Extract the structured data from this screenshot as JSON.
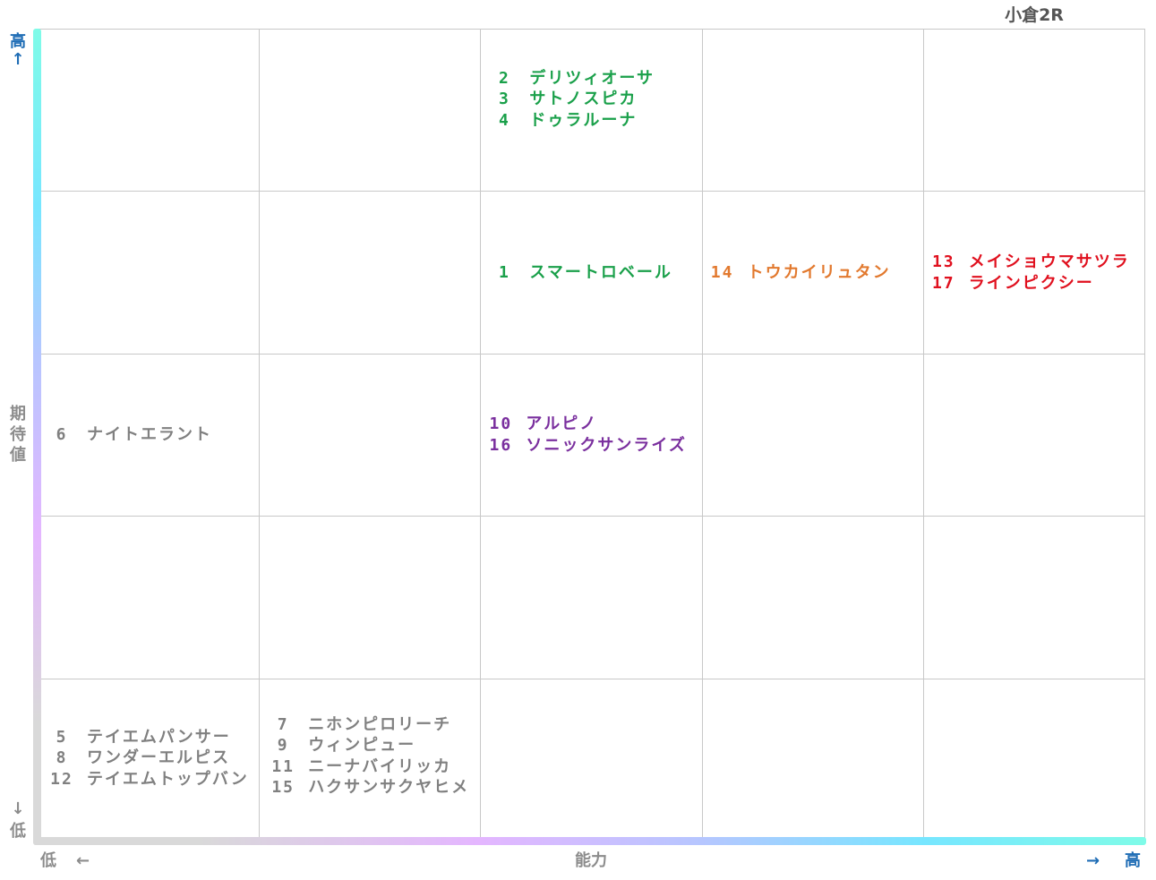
{
  "chart_data": {
    "type": "table",
    "race_title": "小倉2R",
    "x_axis": {
      "label": "能力",
      "low": "低",
      "high": "高",
      "low_arrow": "←",
      "high_arrow": "→"
    },
    "y_axis": {
      "label": "期待値",
      "high": "高",
      "low": "低",
      "up_arrow": "↑",
      "down_arrow": "↓"
    },
    "cells": {
      "r0c2": {
        "color": "#1aa04a",
        "entries": [
          {
            "num": "2",
            "name": "デリツィオーサ"
          },
          {
            "num": "3",
            "name": "サトノスピカ"
          },
          {
            "num": "4",
            "name": "ドゥラルーナ"
          }
        ]
      },
      "r1c2": {
        "color": "#1aa04a",
        "entries": [
          {
            "num": "1",
            "name": "スマートロベール"
          }
        ]
      },
      "r1c3": {
        "color": "#e2792e",
        "entries": [
          {
            "num": "14",
            "name": "トウカイリュタン"
          }
        ]
      },
      "r1c4": {
        "color": "#e0101e",
        "entries": [
          {
            "num": "13",
            "name": "メイショウマサツラ"
          },
          {
            "num": "17",
            "name": "ラインピクシー"
          }
        ]
      },
      "r2c0": {
        "color": "#808080",
        "entries": [
          {
            "num": "6",
            "name": "ナイトエラント"
          }
        ]
      },
      "r2c2": {
        "color": "#7a2f9e",
        "entries": [
          {
            "num": "10",
            "name": "アルピノ"
          },
          {
            "num": "16",
            "name": "ソニックサンライズ"
          }
        ]
      },
      "r4c0": {
        "color": "#808080",
        "entries": [
          {
            "num": "5",
            "name": "テイエムパンサー"
          },
          {
            "num": "8",
            "name": "ワンダーエルピス"
          },
          {
            "num": "12",
            "name": "テイエムトップバン"
          }
        ]
      },
      "r4c1": {
        "color": "#808080",
        "entries": [
          {
            "num": "7",
            "name": "ニホンピロリーチ"
          },
          {
            "num": "9",
            "name": "ウィンピュー"
          },
          {
            "num": "11",
            "name": "ニーナバイリッカ"
          },
          {
            "num": "15",
            "name": "ハクサンサクヤヒメ"
          }
        ]
      }
    }
  }
}
